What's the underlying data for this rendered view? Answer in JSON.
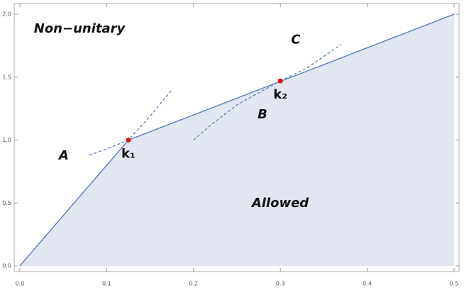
{
  "chart_data": {
    "type": "area",
    "xlim": [
      -0.0065,
      0.5057
    ],
    "ylim": [
      -0.045,
      2.085
    ],
    "xticks": [
      {
        "value": 0,
        "label": "0.0"
      },
      0.1,
      0.2,
      0.3,
      0.4,
      0.5
    ],
    "yticks": [
      {
        "value": 0,
        "label": "0.0"
      },
      0.5,
      {
        "value": 1,
        "label": "1.0"
      },
      1.5,
      {
        "value": 2,
        "label": "2.0"
      }
    ],
    "x": [
      0,
      0.125,
      0.5
    ],
    "values": [
      0,
      1,
      2
    ],
    "color": "#5b7fb8",
    "fill": "#e1e6f0",
    "curves": [
      {
        "name": "A",
        "x": [
          0.08,
          0.1,
          0.125,
          0.15,
          0.175
        ],
        "values": [
          0.88,
          0.93,
          1.0,
          1.19,
          1.4
        ]
      },
      {
        "name": "B",
        "x": [
          0.2,
          0.22,
          0.25,
          0.3
        ],
        "values": [
          1.0,
          1.12,
          1.28,
          1.47
        ]
      },
      {
        "name": "C",
        "x": [
          0.3,
          0.33,
          0.37
        ],
        "values": [
          1.47,
          1.57,
          1.76
        ]
      }
    ],
    "points": [
      {
        "label": "k₁",
        "x": 0.125,
        "y": 1.0
      },
      {
        "label": "k₂",
        "x": 0.3,
        "y": 1.47
      }
    ],
    "point_color": "#e8101a",
    "annotations": [
      "Non−unitary",
      "Allowed"
    ]
  }
}
